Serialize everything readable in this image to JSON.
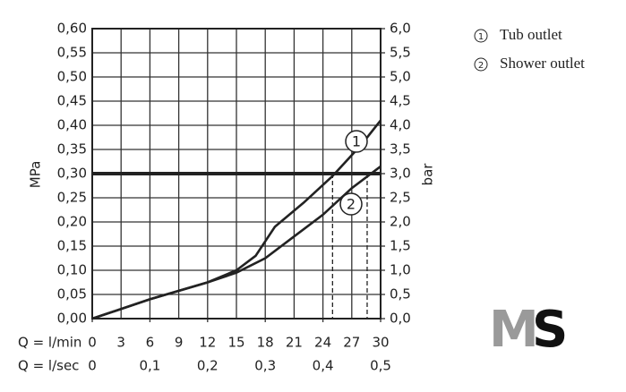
{
  "chart_data": {
    "type": "line",
    "x_label": "Q = l/min",
    "x2_label": "Q = l/sec",
    "y_label": "MPa",
    "y2_label": "bar",
    "xlim": [
      0,
      30
    ],
    "xticks": [
      0,
      3,
      6,
      9,
      12,
      15,
      18,
      21,
      24,
      27,
      30
    ],
    "x2lim": [
      0,
      0.5
    ],
    "x2ticks": [
      {
        "value": 0,
        "label": "0"
      },
      {
        "value": 0.1,
        "label": "0,1"
      },
      {
        "value": 0.2,
        "label": "0,2"
      },
      {
        "value": 0.3,
        "label": "0,3"
      },
      {
        "value": 0.4,
        "label": "0,4"
      },
      {
        "value": 0.5,
        "label": "0,5"
      }
    ],
    "ylim": [
      0,
      0.6
    ],
    "yticks": [
      {
        "value": 0,
        "label": "0,00"
      },
      {
        "value": 0.05,
        "label": "0,05"
      },
      {
        "value": 0.1,
        "label": "0,10"
      },
      {
        "value": 0.15,
        "label": "0,15"
      },
      {
        "value": 0.2,
        "label": "0,20"
      },
      {
        "value": 0.25,
        "label": "0,25"
      },
      {
        "value": 0.3,
        "label": "0,30"
      },
      {
        "value": 0.35,
        "label": "0,35"
      },
      {
        "value": 0.4,
        "label": "0,40"
      },
      {
        "value": 0.45,
        "label": "0,45"
      },
      {
        "value": 0.5,
        "label": "0,50"
      },
      {
        "value": 0.55,
        "label": "0,55"
      },
      {
        "value": 0.6,
        "label": "0,60"
      }
    ],
    "y2lim": [
      0,
      6
    ],
    "y2ticks": [
      {
        "value": 0,
        "label": "0,0"
      },
      {
        "value": 0.5,
        "label": "0,5"
      },
      {
        "value": 1,
        "label": "1,0"
      },
      {
        "value": 1.5,
        "label": "1,5"
      },
      {
        "value": 2,
        "label": "2,0"
      },
      {
        "value": 2.5,
        "label": "2,5"
      },
      {
        "value": 3,
        "label": "3,0"
      },
      {
        "value": 3.5,
        "label": "3,5"
      },
      {
        "value": 4,
        "label": "4,0"
      },
      {
        "value": 4.5,
        "label": "4,5"
      },
      {
        "value": 5,
        "label": "5,0"
      },
      {
        "value": 5.5,
        "label": "5,5"
      },
      {
        "value": 6,
        "label": "6,0"
      }
    ],
    "grid": true,
    "reference_line": 0.3,
    "dashed_x": [
      25,
      28.6
    ],
    "series": [
      {
        "name": "Tub outlet",
        "label": "1",
        "color": "#222222",
        "x": [
          0,
          6,
          12,
          15,
          17,
          19,
          22,
          25,
          28,
          30
        ],
        "values": [
          0,
          0.04,
          0.075,
          0.1,
          0.13,
          0.19,
          0.24,
          0.295,
          0.36,
          0.41
        ]
      },
      {
        "name": "Shower outlet",
        "label": "2",
        "color": "#222222",
        "x": [
          0,
          6,
          12,
          15,
          18,
          21,
          24,
          27,
          30
        ],
        "values": [
          0,
          0.04,
          0.075,
          0.095,
          0.125,
          0.17,
          0.215,
          0.27,
          0.315
        ]
      }
    ],
    "logo": {
      "left": "M",
      "right": "S"
    }
  }
}
